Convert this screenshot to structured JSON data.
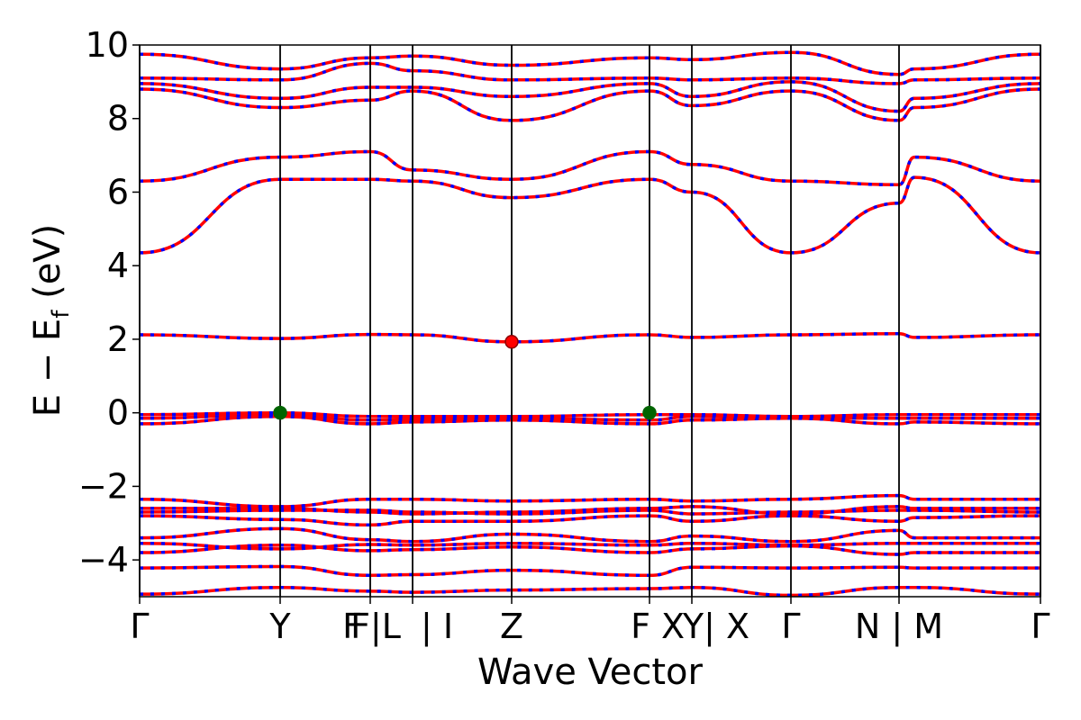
{
  "chart_data": {
    "type": "line",
    "title": "",
    "xlabel": "Wave Vector",
    "ylabel": "E − E",
    "ylabel_sub": "f",
    "ylabel_unit": " (eV)",
    "ylim": [
      -5,
      10
    ],
    "xlim": [
      0,
      1
    ],
    "yticks": [
      -4,
      -2,
      0,
      2,
      4,
      6,
      8,
      10
    ],
    "ytick_labels": [
      "−4",
      "−2",
      "0",
      "2",
      "4",
      "6",
      "8",
      "10"
    ],
    "grid": false,
    "legend": "none",
    "colors": {
      "band_up": "#ff0000",
      "band_down": "#0000ff",
      "vbm": "#006400",
      "cbm": "#ff0000",
      "vline": "#000000"
    },
    "kpoint_lines": [
      0,
      0.156,
      0.256,
      0.303,
      0.413,
      0.566,
      0.613,
      0.723,
      0.843,
      1.0
    ],
    "kpoint_labels": [
      {
        "x": 0,
        "text": "Γ"
      },
      {
        "x": 0.156,
        "text": "Y"
      },
      {
        "x": 0.236,
        "text": "F"
      },
      {
        "x": 0.262,
        "text": "F|L"
      },
      {
        "x": 0.33,
        "text": "| I"
      },
      {
        "x": 0.413,
        "text": "Z"
      },
      {
        "x": 0.556,
        "text": "F"
      },
      {
        "x": 0.592,
        "text": "X"
      },
      {
        "x": 0.64,
        "text": "Y| X"
      },
      {
        "x": 0.723,
        "text": "Γ"
      },
      {
        "x": 0.843,
        "text": "N | M"
      },
      {
        "x": 1.0,
        "text": "Γ"
      }
    ],
    "markers": [
      {
        "label": "VBM",
        "points": [
          [
            0.156,
            0.0
          ],
          [
            0.566,
            0.0
          ]
        ]
      },
      {
        "label": "CBM",
        "points": [
          [
            0.413,
            1.93
          ]
        ]
      }
    ],
    "series": [
      {
        "x": [
          0,
          0.156,
          0.256,
          0.303,
          0.413,
          0.566,
          0.613,
          0.723,
          0.843,
          0.86,
          1.0
        ],
        "values": [
          -4.93,
          -4.75,
          -4.85,
          -4.88,
          -4.82,
          -4.78,
          -4.75,
          -4.96,
          -4.75,
          -4.75,
          -4.93
        ]
      },
      {
        "x": [
          0,
          0.156,
          0.256,
          0.303,
          0.413,
          0.566,
          0.613,
          0.723,
          0.843,
          0.86,
          1.0
        ],
        "values": [
          -4.22,
          -4.18,
          -4.42,
          -4.4,
          -4.28,
          -4.42,
          -4.2,
          -4.22,
          -4.2,
          -4.22,
          -4.22
        ]
      },
      {
        "x": [
          0,
          0.156,
          0.256,
          0.303,
          0.413,
          0.566,
          0.613,
          0.723,
          0.843,
          0.86,
          1.0
        ],
        "values": [
          -3.8,
          -3.6,
          -3.75,
          -3.72,
          -3.65,
          -3.8,
          -3.7,
          -3.62,
          -3.85,
          -3.8,
          -3.8
        ]
      },
      {
        "x": [
          0,
          0.156,
          0.256,
          0.303,
          0.413,
          0.566,
          0.613,
          0.723,
          0.843,
          0.86,
          1.0
        ],
        "values": [
          -3.55,
          -3.7,
          -3.58,
          -3.6,
          -3.55,
          -3.6,
          -3.55,
          -3.6,
          -3.55,
          -3.55,
          -3.55
        ]
      },
      {
        "x": [
          0,
          0.156,
          0.256,
          0.303,
          0.413,
          0.566,
          0.613,
          0.723,
          0.843,
          0.86,
          1.0
        ],
        "values": [
          -3.4,
          -3.15,
          -3.45,
          -3.5,
          -3.3,
          -3.5,
          -3.35,
          -3.5,
          -3.2,
          -3.4,
          -3.4
        ]
      },
      {
        "x": [
          0,
          0.156,
          0.256,
          0.303,
          0.413,
          0.566,
          0.613,
          0.723,
          0.843,
          0.86,
          1.0
        ],
        "values": [
          -2.8,
          -2.9,
          -3.05,
          -2.95,
          -2.95,
          -2.8,
          -2.95,
          -2.8,
          -2.95,
          -2.85,
          -2.8
        ]
      },
      {
        "x": [
          0,
          0.156,
          0.256,
          0.303,
          0.413,
          0.566,
          0.613,
          0.723,
          0.843,
          0.86,
          1.0
        ],
        "values": [
          -2.7,
          -2.65,
          -2.65,
          -2.7,
          -2.75,
          -2.65,
          -2.75,
          -2.7,
          -2.65,
          -2.65,
          -2.7
        ]
      },
      {
        "x": [
          0,
          0.156,
          0.256,
          0.303,
          0.413,
          0.566,
          0.613,
          0.723,
          0.843,
          0.86,
          1.0
        ],
        "values": [
          -2.6,
          -2.6,
          -2.7,
          -2.75,
          -2.7,
          -2.6,
          -2.55,
          -2.75,
          -2.55,
          -2.6,
          -2.6
        ]
      },
      {
        "x": [
          0,
          0.156,
          0.256,
          0.303,
          0.413,
          0.566,
          0.613,
          0.723,
          0.843,
          0.86,
          1.0
        ],
        "values": [
          -2.35,
          -2.55,
          -2.35,
          -2.35,
          -2.4,
          -2.35,
          -2.4,
          -2.35,
          -2.25,
          -2.35,
          -2.35
        ]
      },
      {
        "x": [
          0,
          0.156,
          0.256,
          0.303,
          0.413,
          0.566,
          0.613,
          0.723,
          0.843,
          0.86,
          1.0
        ],
        "values": [
          -0.3,
          -0.1,
          -0.3,
          -0.25,
          -0.2,
          -0.3,
          -0.2,
          -0.15,
          -0.3,
          -0.25,
          -0.3
        ]
      },
      {
        "x": [
          0,
          0.156,
          0.256,
          0.303,
          0.413,
          0.566,
          0.613,
          0.723,
          0.843,
          0.86,
          1.0
        ],
        "values": [
          -0.15,
          -0.05,
          -0.2,
          -0.18,
          -0.15,
          -0.2,
          -0.1,
          -0.15,
          -0.15,
          -0.15,
          -0.15
        ]
      },
      {
        "x": [
          0,
          0.156,
          0.256,
          0.303,
          0.413,
          0.566,
          0.613,
          0.723,
          0.843,
          0.86,
          1.0
        ],
        "values": [
          -0.05,
          0.0,
          -0.1,
          -0.1,
          -0.1,
          -0.05,
          -0.05,
          -0.1,
          -0.05,
          -0.05,
          -0.05
        ]
      },
      {
        "x": [
          0,
          0.156,
          0.256,
          0.303,
          0.413,
          0.566,
          0.613,
          0.723,
          0.843,
          0.86,
          1.0
        ],
        "values": [
          2.12,
          2.02,
          2.13,
          2.12,
          1.93,
          2.12,
          2.05,
          2.12,
          2.15,
          2.05,
          2.12
        ]
      },
      {
        "x": [
          0,
          0.156,
          0.256,
          0.303,
          0.413,
          0.566,
          0.613,
          0.723,
          0.843,
          0.86,
          1.0
        ],
        "values": [
          4.35,
          6.35,
          6.35,
          6.3,
          5.85,
          6.35,
          6.0,
          4.35,
          5.7,
          6.4,
          4.35
        ]
      },
      {
        "x": [
          0,
          0.156,
          0.256,
          0.303,
          0.413,
          0.566,
          0.613,
          0.723,
          0.843,
          0.86,
          1.0
        ],
        "values": [
          6.3,
          6.95,
          7.1,
          6.6,
          6.35,
          7.1,
          6.75,
          6.3,
          6.2,
          6.95,
          6.3
        ]
      },
      {
        "x": [
          0,
          0.156,
          0.256,
          0.303,
          0.413,
          0.566,
          0.613,
          0.723,
          0.843,
          0.86,
          1.0
        ],
        "values": [
          8.8,
          8.3,
          8.5,
          8.75,
          7.95,
          8.75,
          8.35,
          8.75,
          7.95,
          8.3,
          8.8
        ]
      },
      {
        "x": [
          0,
          0.156,
          0.256,
          0.303,
          0.413,
          0.566,
          0.613,
          0.723,
          0.843,
          0.86,
          1.0
        ],
        "values": [
          8.95,
          8.55,
          8.85,
          8.85,
          8.6,
          8.95,
          8.6,
          9.0,
          8.2,
          8.55,
          8.95
        ]
      },
      {
        "x": [
          0,
          0.156,
          0.256,
          0.303,
          0.413,
          0.566,
          0.613,
          0.723,
          0.843,
          0.86,
          1.0
        ],
        "values": [
          9.1,
          9.05,
          9.5,
          9.3,
          9.05,
          9.1,
          9.05,
          9.1,
          8.95,
          9.05,
          9.1
        ]
      },
      {
        "x": [
          0,
          0.156,
          0.256,
          0.303,
          0.413,
          0.566,
          0.613,
          0.723,
          0.843,
          0.86,
          1.0
        ],
        "values": [
          9.75,
          9.35,
          9.65,
          9.7,
          9.45,
          9.65,
          9.6,
          9.8,
          9.2,
          9.35,
          9.75
        ]
      }
    ]
  }
}
